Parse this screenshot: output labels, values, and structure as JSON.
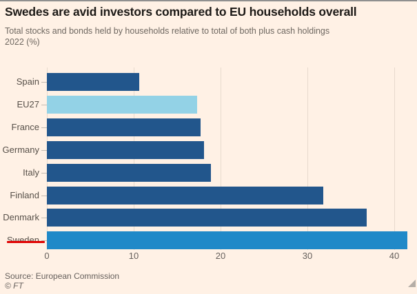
{
  "header": {
    "title": "Swedes are avid investors compared to EU households overall",
    "subtitle_line1": "Total stocks and bonds held by households relative to total of both plus cash holdings",
    "subtitle_line2": "2022 (%)"
  },
  "footer": {
    "source": "Source: European Commission",
    "copyright": "© FT"
  },
  "palette": {
    "background": "#fff1e5",
    "bar_default": "#22568c",
    "bar_eu_average": "#93d2e6",
    "bar_highlight": "#2089c8",
    "annotation_red": "#e00000",
    "gridline": "#e7dacd",
    "text_muted": "#66605c"
  },
  "chart_data": {
    "type": "bar",
    "orientation": "horizontal",
    "title": "Swedes are avid investors compared to EU households overall",
    "subtitle": "Total stocks and bonds held by households relative to total of both plus cash holdings 2022 (%)",
    "categories": [
      "Spain",
      "EU27",
      "France",
      "Germany",
      "Italy",
      "Finland",
      "Denmark",
      "Sweden"
    ],
    "values": [
      10.6,
      17.3,
      17.7,
      18.1,
      18.9,
      31.8,
      36.8,
      41.5
    ],
    "bar_colors": [
      "#22568c",
      "#93d2e6",
      "#22568c",
      "#22568c",
      "#22568c",
      "#22568c",
      "#22568c",
      "#2089c8"
    ],
    "x_ticks": [
      0,
      10,
      20,
      30,
      40
    ],
    "xlim": [
      0,
      42
    ],
    "xlabel": "",
    "ylabel": "",
    "grid": "vertical",
    "legend": "none",
    "annotations": [
      {
        "type": "underline",
        "target": "Sweden",
        "color": "#e00000"
      }
    ]
  }
}
